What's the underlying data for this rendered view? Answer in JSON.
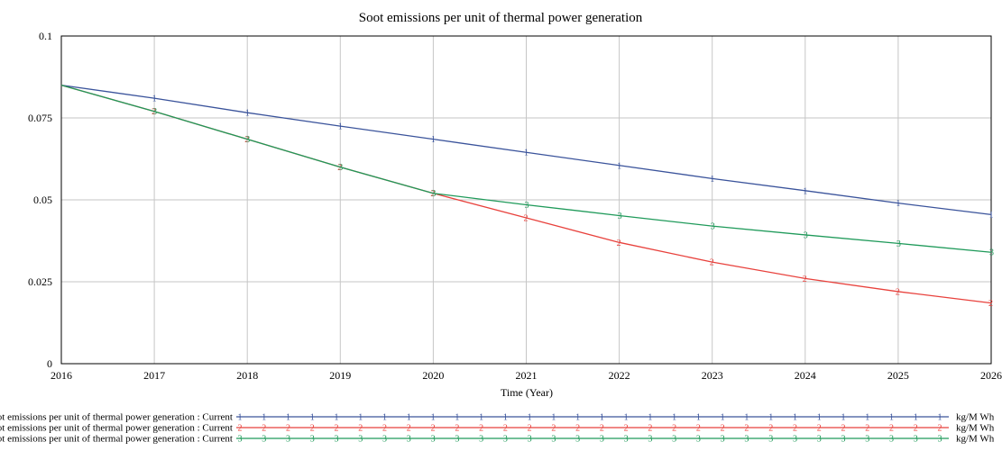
{
  "chart_data": {
    "type": "line",
    "title": "Soot emissions per unit of thermal power generation",
    "xlabel": "Time (Year)",
    "ylabel": "",
    "xlim": [
      2016,
      2026
    ],
    "ylim": [
      0,
      0.1
    ],
    "x_ticks": [
      "2016",
      "2017",
      "2018",
      "2019",
      "2020",
      "2021",
      "2022",
      "2023",
      "2024",
      "2025",
      "2026"
    ],
    "y_ticks": [
      "0",
      "0.025",
      "0.05",
      "0.075",
      "0.1"
    ],
    "grid": true,
    "legend_position": "bottom",
    "x": [
      2016,
      2017,
      2018,
      2019,
      2020,
      2021,
      2022,
      2023,
      2024,
      2025,
      2026
    ],
    "series": [
      {
        "name": "Soot emissions per unit of thermal power generation : Current",
        "marker": "1",
        "unit": "kg/M Wh",
        "color": "#3a539b",
        "values": [
          0.085,
          0.081,
          0.0766,
          0.0725,
          0.0685,
          0.0645,
          0.0605,
          0.0565,
          0.0528,
          0.049,
          0.0455
        ]
      },
      {
        "name": "Soot emissions per unit of thermal power generation : Current",
        "marker": "2",
        "unit": "kg/M Wh",
        "color": "#e8413c",
        "values": [
          0.085,
          0.077,
          0.0685,
          0.06,
          0.052,
          0.0445,
          0.037,
          0.031,
          0.026,
          0.022,
          0.0185
        ]
      },
      {
        "name": "Soot emissions per unit of thermal power generation : Current",
        "marker": "3",
        "unit": "kg/M Wh",
        "color": "#1f9a5a",
        "values": [
          0.085,
          0.077,
          0.0685,
          0.06,
          0.052,
          0.0485,
          0.0452,
          0.042,
          0.0393,
          0.0367,
          0.034
        ]
      }
    ]
  }
}
